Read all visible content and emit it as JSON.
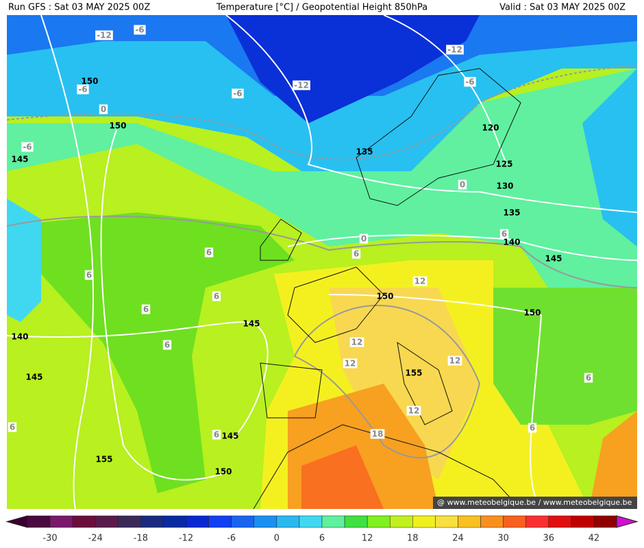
{
  "header": {
    "run": "Run GFS : Sat 03 MAY 2025 00Z",
    "title": "Temperature [°C] / Geopotential Height 850hPa",
    "valid": "Valid : Sat 03 MAY 2025 00Z"
  },
  "contour_labels": [
    "-12",
    "-6",
    "150",
    "-6",
    "0",
    "150",
    "-6",
    "145",
    "-6",
    "-12",
    "-12",
    "-6",
    "120",
    "135",
    "125",
    "0",
    "130",
    "135",
    "0",
    "6",
    "140",
    "6",
    "6",
    "145",
    "6",
    "12",
    "150",
    "6",
    "6",
    "150",
    "145",
    "140",
    "12",
    "6",
    "12",
    "12",
    "155",
    "145",
    "6",
    "12",
    "6",
    "6",
    "145",
    "6",
    "18",
    "155",
    "150"
  ],
  "watermark": "@ www.meteobelgique.be / www.meteobelgique.be",
  "colorbar": {
    "ticks": [
      -30,
      -24,
      -18,
      -12,
      -6,
      0,
      6,
      12,
      18,
      24,
      30,
      36,
      42
    ],
    "low_color": "#3a0030",
    "high_color": "#d010d0",
    "colors": [
      "#4b0a40",
      "#7a1a6a",
      "#6a0f3c",
      "#5a1a4a",
      "#3a2a5a",
      "#1a2a80",
      "#0a2aa0",
      "#0a28d0",
      "#1040f0",
      "#1a64f0",
      "#1a90f0",
      "#2ab8f0",
      "#40d8f0",
      "#60f0a0",
      "#40e040",
      "#80f020",
      "#c0f020",
      "#f0f020",
      "#f8e040",
      "#f8c020",
      "#f89020",
      "#f86020",
      "#f83030",
      "#e01010",
      "#c00000",
      "#900000"
    ]
  }
}
